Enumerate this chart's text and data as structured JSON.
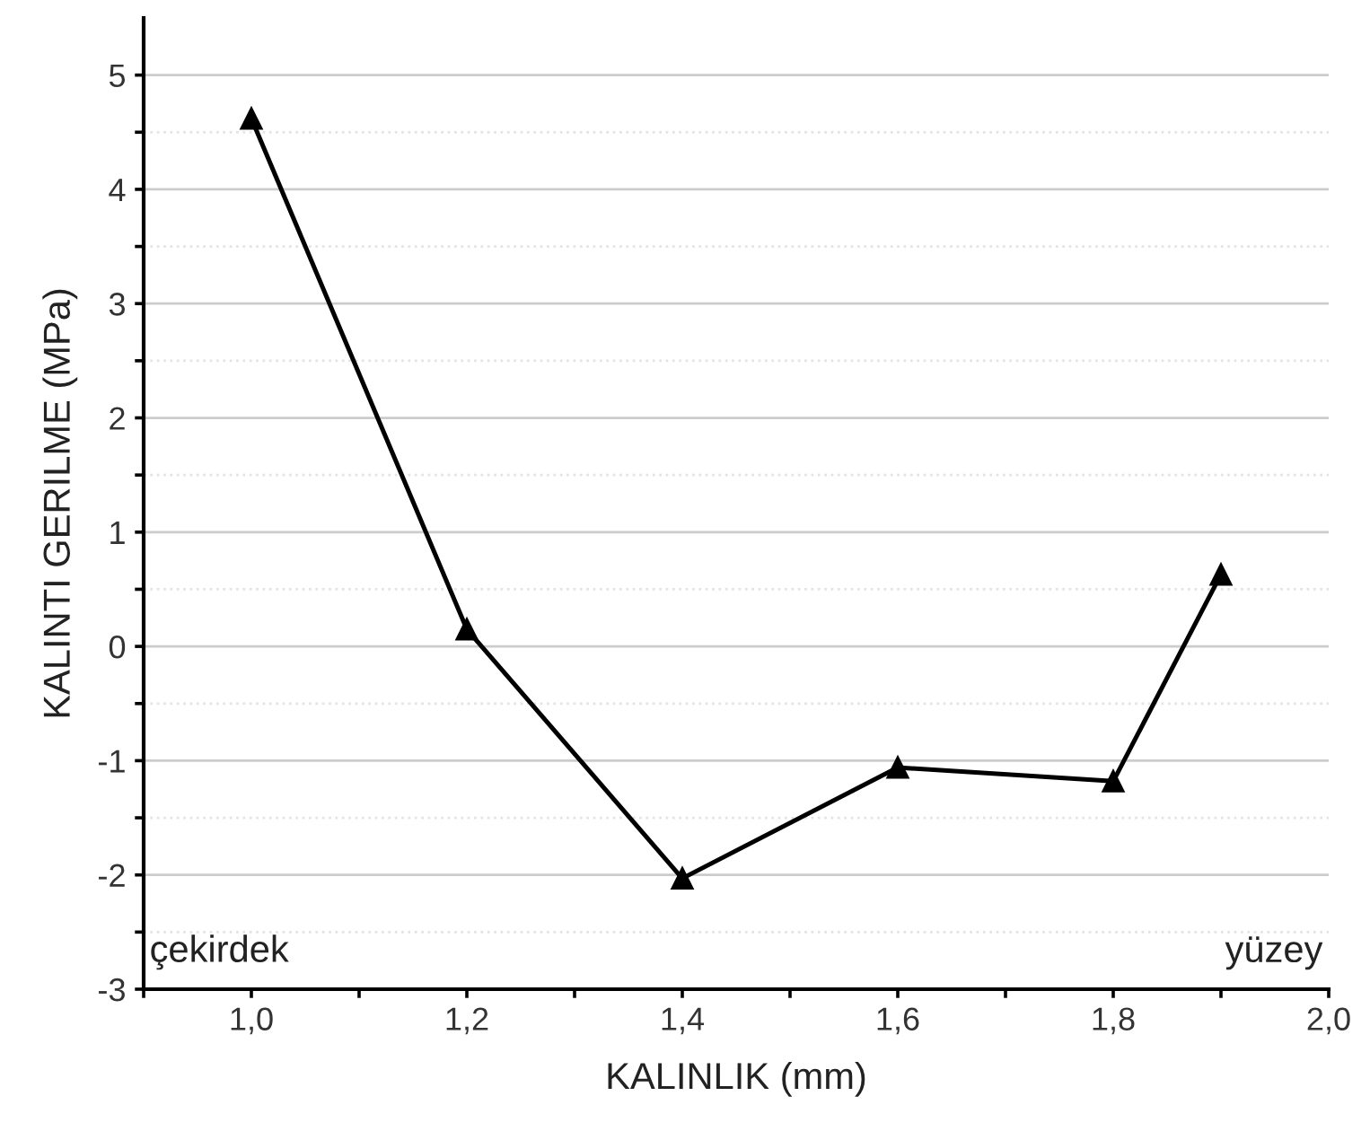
{
  "chart_data": {
    "type": "line",
    "xlabel": "KALINLIK (mm)",
    "ylabel": "KALINTI GERILME (MPa)",
    "x": [
      1.0,
      1.2,
      1.4,
      1.6,
      1.8,
      1.9
    ],
    "series": [
      {
        "color": "#000000",
        "values": [
          4.62,
          0.15,
          -2.03,
          -1.06,
          -1.18,
          0.63
        ]
      }
    ],
    "marker": "triangle",
    "line_style": "solid",
    "grid": "y",
    "xlim": [
      0.9,
      2.0
    ],
    "ylim": [
      -3,
      5.5
    ],
    "xticks": [
      {
        "value": 0.9,
        "label": null
      },
      {
        "value": 1.0,
        "label": "1,0"
      },
      {
        "value": 1.1,
        "label": null
      },
      {
        "value": 1.2,
        "label": "1,2"
      },
      {
        "value": 1.3,
        "label": null
      },
      {
        "value": 1.4,
        "label": "1,4"
      },
      {
        "value": 1.5,
        "label": null
      },
      {
        "value": 1.6,
        "label": "1,6"
      },
      {
        "value": 1.7,
        "label": null
      },
      {
        "value": 1.8,
        "label": "1,8"
      },
      {
        "value": 1.9,
        "label": null
      },
      {
        "value": 2.0,
        "label": "2,0"
      }
    ],
    "yticks": [
      -3,
      {
        "value": -2.5,
        "label": null
      },
      -2,
      {
        "value": -1.5,
        "label": null
      },
      -1,
      {
        "value": -0.5,
        "label": null
      },
      0,
      {
        "value": 0.5,
        "label": null
      },
      1,
      {
        "value": 1.5,
        "label": null
      },
      2,
      {
        "value": 2.5,
        "label": null
      },
      3,
      {
        "value": 3.5,
        "label": null
      },
      4,
      {
        "value": 4.5,
        "label": null
      },
      5
    ],
    "annotations": [
      "çekirdek",
      "yüzey"
    ]
  }
}
